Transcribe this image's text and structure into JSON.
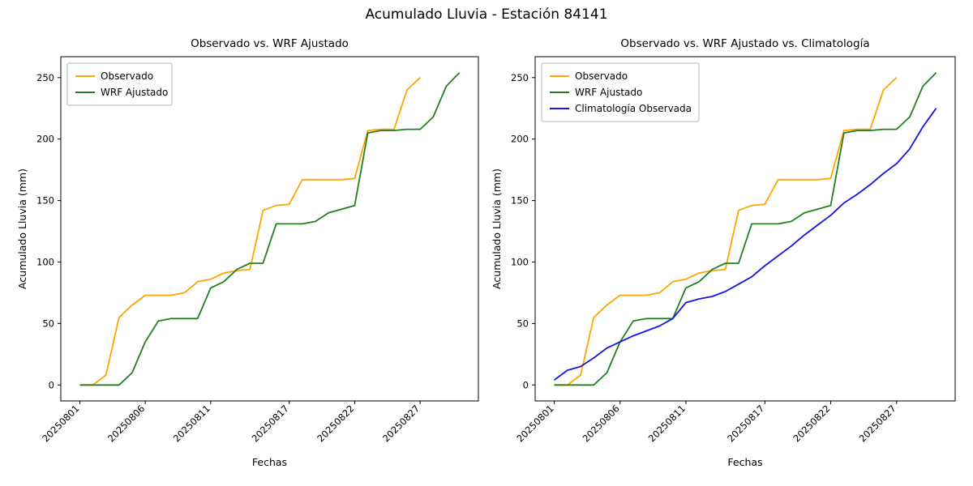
{
  "figure": {
    "title": "Acumulado Lluvia - Estación 84141",
    "background": "#ffffff"
  },
  "colors": {
    "observado": "#ffa500",
    "wrf_ajustado": "#208020",
    "climatologia": "#1515e0",
    "axes": "#000000",
    "legend_border": "#b3b3b3"
  },
  "chart_data": [
    {
      "type": "line",
      "title": "Observado vs. WRF Ajustado",
      "xlabel": "Fechas",
      "ylabel": "Acumulado Lluvia (mm)",
      "x": [
        "20250801",
        "20250802",
        "20250803",
        "20250804",
        "20250805",
        "20250806",
        "20250807",
        "20250808",
        "20250809",
        "20250810",
        "20250811",
        "20250812",
        "20250813",
        "20250814",
        "20250815",
        "20250816",
        "20250817",
        "20250818",
        "20250819",
        "20250820",
        "20250821",
        "20250822",
        "20250823",
        "20250824",
        "20250825",
        "20250826",
        "20250827",
        "20250828",
        "20250829",
        "20250830"
      ],
      "xticks": [
        "20250801",
        "20250806",
        "20250811",
        "20250817",
        "20250822",
        "20250827"
      ],
      "yticks": [
        0,
        50,
        100,
        150,
        200,
        250
      ],
      "ylim": [
        -13,
        267
      ],
      "legend_position": "upper-left",
      "grid": false,
      "series": [
        {
          "name": "Observado",
          "color": "#ffa500",
          "values": [
            0,
            0,
            8,
            55,
            65,
            73,
            73,
            73,
            75,
            84,
            86,
            91,
            93,
            94,
            142,
            146,
            147,
            167,
            167,
            167,
            167,
            168,
            207,
            208,
            208,
            240,
            250,
            null,
            null,
            null
          ]
        },
        {
          "name": "WRF Ajustado",
          "color": "#208020",
          "values": [
            0,
            0,
            0,
            0,
            10,
            35,
            52,
            54,
            54,
            54,
            79,
            84,
            94,
            99,
            99,
            131,
            131,
            131,
            133,
            140,
            143,
            146,
            205,
            207,
            207,
            208,
            208,
            218,
            243,
            254
          ]
        }
      ]
    },
    {
      "type": "line",
      "title": "Observado vs. WRF Ajustado vs. Climatología",
      "xlabel": "Fechas",
      "ylabel": "Acumulado Lluvia (mm)",
      "x": [
        "20250801",
        "20250802",
        "20250803",
        "20250804",
        "20250805",
        "20250806",
        "20250807",
        "20250808",
        "20250809",
        "20250810",
        "20250811",
        "20250812",
        "20250813",
        "20250814",
        "20250815",
        "20250816",
        "20250817",
        "20250818",
        "20250819",
        "20250820",
        "20250821",
        "20250822",
        "20250823",
        "20250824",
        "20250825",
        "20250826",
        "20250827",
        "20250828",
        "20250829",
        "20250830"
      ],
      "xticks": [
        "20250801",
        "20250806",
        "20250811",
        "20250817",
        "20250822",
        "20250827"
      ],
      "yticks": [
        0,
        50,
        100,
        150,
        200,
        250
      ],
      "ylim": [
        -13,
        267
      ],
      "legend_position": "upper-left",
      "grid": false,
      "series": [
        {
          "name": "Observado",
          "color": "#ffa500",
          "values": [
            0,
            0,
            8,
            55,
            65,
            73,
            73,
            73,
            75,
            84,
            86,
            91,
            93,
            94,
            142,
            146,
            147,
            167,
            167,
            167,
            167,
            168,
            207,
            208,
            208,
            240,
            250,
            null,
            null,
            null
          ]
        },
        {
          "name": "WRF Ajustado",
          "color": "#208020",
          "values": [
            0,
            0,
            0,
            0,
            10,
            35,
            52,
            54,
            54,
            54,
            79,
            84,
            94,
            99,
            99,
            131,
            131,
            131,
            133,
            140,
            143,
            146,
            205,
            207,
            207,
            208,
            208,
            218,
            243,
            254
          ]
        },
        {
          "name": "Climatología Observada",
          "color": "#1515e0",
          "values": [
            4,
            12,
            15,
            22,
            30,
            35,
            40,
            44,
            48,
            54,
            67,
            70,
            72,
            76,
            82,
            88,
            97,
            105,
            113,
            122,
            130,
            138,
            148,
            155,
            163,
            172,
            180,
            192,
            210,
            225
          ]
        }
      ]
    }
  ]
}
